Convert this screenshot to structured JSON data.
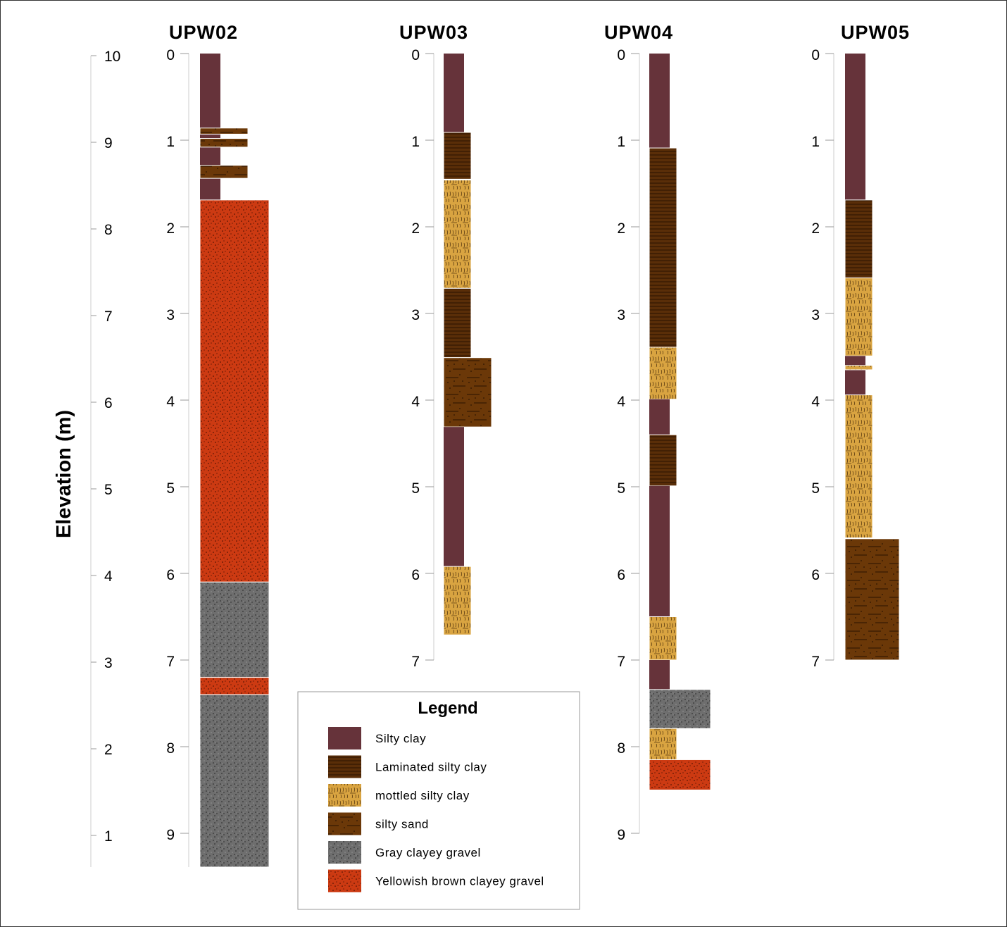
{
  "y_axis": {
    "label": "Elevation (m)",
    "ticks": [
      10,
      9,
      8,
      7,
      6,
      5,
      4,
      3,
      2,
      1
    ]
  },
  "lithology": {
    "silty_clay": {
      "label": "Silty clay",
      "color": "#66333a"
    },
    "laminated_silty_clay": {
      "label": "Laminated silty clay",
      "color": "#5a2e08"
    },
    "mottled_silty_clay": {
      "label": "mottled silty clay",
      "color": "#d9a441"
    },
    "silty_sand": {
      "label": "silty sand",
      "color": "#6b3808"
    },
    "gray_clayey_gravel": {
      "label": "Gray clayey gravel",
      "color": "#6e6e6e"
    },
    "yellowish_brown_clayey_gravel": {
      "label": "Yellowish brown clayey gravel",
      "color": "#cc3a12"
    }
  },
  "legend": {
    "title": "Legend",
    "order": [
      "silty_clay",
      "laminated_silty_clay",
      "mottled_silty_clay",
      "silty_sand",
      "gray_clayey_gravel",
      "yellowish_brown_clayey_gravel"
    ]
  },
  "boreholes": [
    {
      "name": "UPW02",
      "depth_ticks": [
        0,
        1,
        2,
        3,
        4,
        5,
        6,
        7,
        8,
        9
      ],
      "layers": [
        {
          "top": 0,
          "bottom": 1.69,
          "type": "silty_clay"
        },
        {
          "top": 0.86,
          "bottom": 0.93,
          "type": "silty_sand"
        },
        {
          "top": 0.98,
          "bottom": 1.08,
          "type": "silty_sand"
        },
        {
          "top": 1.29,
          "bottom": 1.44,
          "type": "silty_sand"
        },
        {
          "top": 1.69,
          "bottom": 6.1,
          "type": "yellowish_brown_clayey_gravel"
        },
        {
          "top": 6.1,
          "bottom": 7.2,
          "type": "gray_clayey_gravel"
        },
        {
          "top": 7.2,
          "bottom": 7.4,
          "type": "yellowish_brown_clayey_gravel"
        },
        {
          "top": 7.4,
          "bottom": 9.39,
          "type": "gray_clayey_gravel"
        }
      ]
    },
    {
      "name": "UPW03",
      "depth_ticks": [
        0,
        1,
        2,
        3,
        4,
        5,
        6,
        7
      ],
      "layers": [
        {
          "top": 0,
          "bottom": 0.91,
          "type": "silty_clay"
        },
        {
          "top": 0.91,
          "bottom": 1.45,
          "type": "laminated_silty_clay"
        },
        {
          "top": 1.46,
          "bottom": 2.71,
          "type": "mottled_silty_clay"
        },
        {
          "top": 2.71,
          "bottom": 3.51,
          "type": "laminated_silty_clay"
        },
        {
          "top": 3.51,
          "bottom": 4.31,
          "type": "silty_sand"
        },
        {
          "top": 4.31,
          "bottom": 5.92,
          "type": "silty_clay"
        },
        {
          "top": 5.92,
          "bottom": 6.71,
          "type": "mottled_silty_clay"
        }
      ]
    },
    {
      "name": "UPW04",
      "depth_ticks": [
        0,
        1,
        2,
        3,
        4,
        5,
        6,
        7,
        8,
        9
      ],
      "layers": [
        {
          "top": 0,
          "bottom": 1.09,
          "type": "silty_clay"
        },
        {
          "top": 1.09,
          "bottom": 3.39,
          "type": "laminated_silty_clay"
        },
        {
          "top": 3.39,
          "bottom": 3.99,
          "type": "mottled_silty_clay"
        },
        {
          "top": 3.99,
          "bottom": 4.4,
          "type": "silty_clay"
        },
        {
          "top": 4.4,
          "bottom": 4.99,
          "type": "laminated_silty_clay"
        },
        {
          "top": 4.99,
          "bottom": 6.5,
          "type": "silty_clay"
        },
        {
          "top": 6.5,
          "bottom": 7.0,
          "type": "mottled_silty_clay"
        },
        {
          "top": 7.0,
          "bottom": 7.34,
          "type": "silty_clay"
        },
        {
          "top": 7.34,
          "bottom": 7.79,
          "type": "gray_clayey_gravel"
        },
        {
          "top": 7.79,
          "bottom": 8.15,
          "type": "mottled_silty_clay"
        },
        {
          "top": 8.15,
          "bottom": 8.5,
          "type": "yellowish_brown_clayey_gravel"
        }
      ]
    },
    {
      "name": "UPW05",
      "depth_ticks": [
        0,
        1,
        2,
        3,
        4,
        5,
        6,
        7
      ],
      "layers": [
        {
          "top": 0,
          "bottom": 1.69,
          "type": "silty_clay"
        },
        {
          "top": 1.69,
          "bottom": 2.59,
          "type": "laminated_silty_clay"
        },
        {
          "top": 2.59,
          "bottom": 3.49,
          "type": "mottled_silty_clay"
        },
        {
          "top": 3.49,
          "bottom": 3.94,
          "type": "silty_clay"
        },
        {
          "top": 3.6,
          "bottom": 3.65,
          "type": "mottled_silty_clay"
        },
        {
          "top": 3.94,
          "bottom": 5.59,
          "type": "mottled_silty_clay"
        },
        {
          "top": 5.6,
          "bottom": 7.0,
          "type": "silty_sand"
        }
      ]
    }
  ]
}
